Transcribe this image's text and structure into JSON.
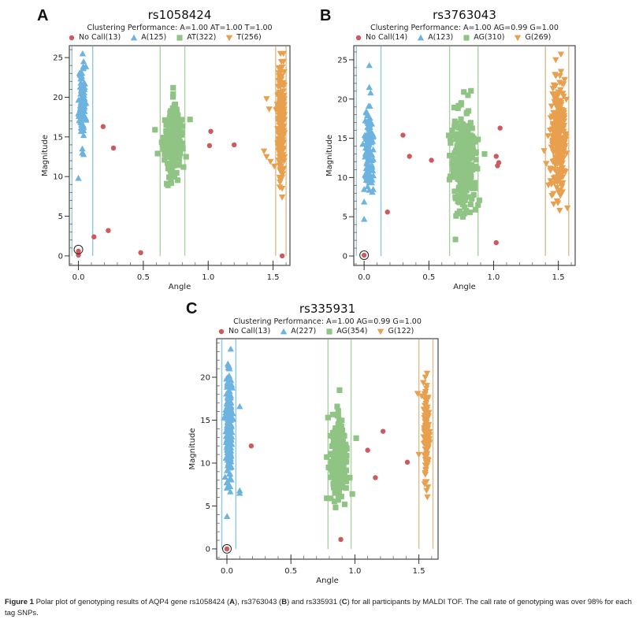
{
  "caption": {
    "lead": "Figure 1",
    "text_1": " Polar plot of genotyping results of AQP4 gene rs1058424 (",
    "b_A": "A",
    "text_2": "), rs3763043 (",
    "b_B": "B",
    "text_3": ") and rs335931 (",
    "b_C": "C",
    "text_4": ") for all participants by MALDI TOF. The call rate of genotyping was over 98% for each tag SNPs."
  },
  "colors": {
    "nocall": "#cc5a5f",
    "hom1": "#6cb4df",
    "het": "#8fc484",
    "hom2": "#e8a04f",
    "nocall_line": "#9fc8d6",
    "hom1_line": "#8fc4de",
    "het_line": "#a9d3a0",
    "hom2_line": "#d8be8e"
  },
  "chart_data": [
    {
      "panel": "A",
      "type": "scatter",
      "title": "rs1058424",
      "subtitle": "Clustering Performance: A=1.00 AT=1.00 T=1.00",
      "xlabel": "Angle",
      "ylabel": "Magnitude",
      "xlim": [
        -0.07,
        1.63
      ],
      "ylim": [
        -1.2,
        26.5
      ],
      "xticks": [
        "0.0",
        "0.5",
        "1.0",
        "1.5"
      ],
      "xtick_values": [
        0,
        0.5,
        1.0,
        1.5
      ],
      "yticks": [
        "0",
        "5",
        "10",
        "15",
        "20",
        "25"
      ],
      "ytick_values": [
        0,
        5,
        10,
        15,
        20,
        25
      ],
      "legend": [
        {
          "key": "nocall",
          "label": "No Call(13)",
          "shape": "circle"
        },
        {
          "key": "hom1",
          "label": "A(125)",
          "shape": "triangle-up"
        },
        {
          "key": "het",
          "label": "AT(322)",
          "shape": "square"
        },
        {
          "key": "hom2",
          "label": "T(256)",
          "shape": "triangle-down"
        }
      ],
      "boundaries": [
        {
          "x": -0.05,
          "key": "nocall_line"
        },
        {
          "x": 0.11,
          "key": "hom1_line"
        },
        {
          "x": 0.63,
          "key": "het_line"
        },
        {
          "x": 0.82,
          "key": "het_line"
        },
        {
          "x": 1.52,
          "key": "hom2_line"
        },
        {
          "x": 1.6,
          "key": "hom2_line"
        }
      ],
      "clusters": [
        {
          "key": "hom1",
          "shape": "triangle-up",
          "n": 125,
          "x_center": 0.03,
          "x_spread": 0.012,
          "y_center": 19.5,
          "y_spread": 2.2,
          "seed": 11
        },
        {
          "key": "het",
          "shape": "square",
          "n": 322,
          "x_center": 0.73,
          "x_spread": 0.03,
          "y_center": 14.5,
          "y_spread": 1.8,
          "seed": 23
        },
        {
          "key": "hom2",
          "shape": "triangle-down",
          "n": 256,
          "x_center": 1.56,
          "x_spread": 0.012,
          "y_center": 17,
          "y_spread": 3.5,
          "seed": 37
        }
      ],
      "points": {
        "hom1": [
          [
            0.04,
            24.5
          ],
          [
            0.04,
            23.8
          ],
          [
            0.03,
            13.5
          ],
          [
            0.03,
            13.0
          ],
          [
            0.04,
            12.8
          ],
          [
            0.0,
            9.8
          ],
          [
            0.04,
            15.2
          ],
          [
            0.04,
            15.8
          ]
        ],
        "het": [
          [
            0.73,
            21.2
          ],
          [
            0.73,
            20.4
          ],
          [
            0.86,
            17.2
          ],
          [
            0.59,
            15.9
          ],
          [
            0.61,
            12.9
          ],
          [
            0.69,
            8.9
          ],
          [
            0.68,
            9.1
          ],
          [
            0.83,
            12.5
          ],
          [
            0.81,
            11.2
          ],
          [
            0.71,
            10.0
          ],
          [
            0.74,
            10.0
          ]
        ],
        "hom2": [
          [
            1.58,
            25.5
          ],
          [
            1.58,
            24.5
          ],
          [
            1.57,
            23.8
          ],
          [
            1.45,
            19.8
          ],
          [
            1.47,
            18.5
          ],
          [
            1.43,
            13.2
          ],
          [
            1.45,
            12.5
          ],
          [
            1.48,
            11.9
          ],
          [
            1.51,
            11.3
          ],
          [
            1.55,
            9.9
          ],
          [
            1.57,
            8.5
          ],
          [
            1.57,
            7.4
          ]
        ],
        "nocall": [
          [
            0.19,
            16.3
          ],
          [
            0.27,
            13.6
          ],
          [
            0.23,
            3.2
          ],
          [
            0.12,
            2.4
          ],
          [
            0.48,
            0.4
          ],
          [
            0.0,
            0.6
          ],
          [
            0.0,
            0.1
          ],
          [
            1.02,
            15.7
          ],
          [
            1.01,
            13.9
          ],
          [
            1.2,
            14.0
          ],
          [
            1.57,
            0.0
          ]
        ]
      },
      "origin_marker": [
        0.0,
        0.8
      ]
    },
    {
      "panel": "B",
      "type": "scatter",
      "title": "rs3763043",
      "subtitle": "Clustering Performance: A=1.00 AG=0.99 G=1.00",
      "xlabel": "Angle",
      "ylabel": "Magnitude",
      "xlim": [
        -0.08,
        1.63
      ],
      "ylim": [
        -1.2,
        26.8
      ],
      "xticks": [
        "0.0",
        "0.5",
        "1.0",
        "1.5"
      ],
      "xtick_values": [
        0,
        0.5,
        1.0,
        1.5
      ],
      "yticks": [
        "0",
        "5",
        "10",
        "15",
        "20",
        "25"
      ],
      "ytick_values": [
        0,
        5,
        10,
        15,
        20,
        25
      ],
      "legend": [
        {
          "key": "nocall",
          "label": "No Call(14)",
          "shape": "circle"
        },
        {
          "key": "hom1",
          "label": "A(123)",
          "shape": "triangle-up"
        },
        {
          "key": "het",
          "label": "AG(310)",
          "shape": "square"
        },
        {
          "key": "hom2",
          "label": "G(269)",
          "shape": "triangle-down"
        }
      ],
      "boundaries": [
        {
          "x": -0.06,
          "key": "nocall_line"
        },
        {
          "x": 0.13,
          "key": "hom1_line"
        },
        {
          "x": 0.66,
          "key": "het_line"
        },
        {
          "x": 0.88,
          "key": "het_line"
        },
        {
          "x": 1.4,
          "key": "hom2_line"
        },
        {
          "x": 1.58,
          "key": "hom2_line"
        }
      ],
      "clusters": [
        {
          "key": "hom1",
          "shape": "triangle-up",
          "n": 123,
          "x_center": 0.035,
          "x_spread": 0.018,
          "y_center": 13.5,
          "y_spread": 2.6,
          "seed": 51
        },
        {
          "key": "het",
          "shape": "square",
          "n": 310,
          "x_center": 0.77,
          "x_spread": 0.04,
          "y_center": 12.0,
          "y_spread": 3.0,
          "seed": 63
        },
        {
          "key": "hom2",
          "shape": "triangle-down",
          "n": 269,
          "x_center": 1.5,
          "x_spread": 0.03,
          "y_center": 15.5,
          "y_spread": 3.6,
          "seed": 79
        }
      ],
      "points": {
        "hom1": [
          [
            0.04,
            24.3
          ],
          [
            0.04,
            21.5
          ],
          [
            0.05,
            20.8
          ],
          [
            0.0,
            8.5
          ],
          [
            0.04,
            8.4
          ],
          [
            0.07,
            8.5
          ],
          [
            0.0,
            6.9
          ],
          [
            0.0,
            4.7
          ]
        ],
        "het": [
          [
            0.77,
            20.9
          ],
          [
            0.75,
            19.5
          ],
          [
            0.93,
            13.0
          ],
          [
            0.69,
            15.4
          ],
          [
            0.66,
            12.8
          ],
          [
            0.72,
            5.4
          ],
          [
            0.71,
            5.1
          ],
          [
            0.86,
            5.9
          ],
          [
            0.88,
            6.5
          ],
          [
            0.89,
            7.1
          ]
        ],
        "hom2": [
          [
            1.52,
            25.7
          ],
          [
            1.48,
            25.0
          ],
          [
            1.42,
            15.3
          ],
          [
            1.39,
            13.4
          ],
          [
            1.45,
            7.7
          ],
          [
            1.51,
            5.8
          ],
          [
            1.57,
            6.1
          ],
          [
            1.49,
            7.0
          ]
        ],
        "nocall": [
          [
            0.3,
            15.4
          ],
          [
            0.35,
            12.7
          ],
          [
            0.52,
            12.2
          ],
          [
            0.18,
            5.6
          ],
          [
            1.05,
            16.3
          ],
          [
            1.02,
            12.7
          ],
          [
            1.04,
            11.9
          ],
          [
            1.03,
            11.5
          ],
          [
            1.02,
            1.7
          ],
          [
            0.0,
            0.1
          ]
        ]
      },
      "origin_marker": [
        0.0,
        0.1
      ]
    },
    {
      "panel": "C",
      "type": "scatter",
      "title": "rs335931",
      "subtitle": "Clustering Performance: A=1.00 AG=0.99 G=1.00",
      "xlabel": "Angle",
      "ylabel": "Magnitude",
      "xlim": [
        -0.08,
        1.65
      ],
      "ylim": [
        -1.2,
        24.5
      ],
      "xticks": [
        "0.0",
        "0.5",
        "1.0",
        "1.5"
      ],
      "xtick_values": [
        0,
        0.5,
        1.0,
        1.5
      ],
      "yticks": [
        "0",
        "5",
        "10",
        "15",
        "20"
      ],
      "ytick_values": [
        0,
        5,
        10,
        15,
        20
      ],
      "legend": [
        {
          "key": "nocall",
          "label": "No Call(13)",
          "shape": "circle"
        },
        {
          "key": "hom1",
          "label": "A(227)",
          "shape": "triangle-up"
        },
        {
          "key": "het",
          "label": "AG(354)",
          "shape": "square"
        },
        {
          "key": "hom2",
          "label": "G(122)",
          "shape": "triangle-down"
        }
      ],
      "boundaries": [
        {
          "x": -0.04,
          "key": "hom1_line"
        },
        {
          "x": 0.07,
          "key": "hom1_line"
        },
        {
          "x": 0.79,
          "key": "het_line"
        },
        {
          "x": 0.97,
          "key": "het_line"
        },
        {
          "x": 1.5,
          "key": "hom2_line"
        },
        {
          "x": 1.61,
          "key": "hom2_line"
        }
      ],
      "clusters": [
        {
          "key": "hom1",
          "shape": "triangle-up",
          "n": 227,
          "x_center": 0.015,
          "x_spread": 0.012,
          "y_center": 13.5,
          "y_spread": 3.2,
          "seed": 91
        },
        {
          "key": "het",
          "shape": "square",
          "n": 354,
          "x_center": 0.87,
          "x_spread": 0.028,
          "y_center": 10.5,
          "y_spread": 1.9,
          "seed": 103
        },
        {
          "key": "hom2",
          "shape": "triangle-down",
          "n": 122,
          "x_center": 1.56,
          "x_spread": 0.012,
          "y_center": 13.5,
          "y_spread": 2.6,
          "seed": 117
        }
      ],
      "points": {
        "hom1": [
          [
            0.03,
            23.3
          ],
          [
            0.01,
            21.4
          ],
          [
            0.02,
            21.0
          ],
          [
            0.1,
            16.6
          ],
          [
            0.1,
            6.8
          ],
          [
            0.1,
            6.5
          ],
          [
            0.0,
            7.1
          ]
        ],
        "het": [
          [
            0.88,
            18.5
          ],
          [
            0.87,
            16.1
          ],
          [
            1.01,
            12.9
          ],
          [
            0.79,
            15.3
          ],
          [
            0.78,
            10.7
          ],
          [
            0.78,
            5.9
          ],
          [
            0.87,
            5.7
          ],
          [
            0.92,
            5.2
          ],
          [
            0.98,
            6.4
          ],
          [
            0.96,
            8.3
          ]
        ],
        "hom2": [
          [
            1.55,
            20.0
          ],
          [
            1.49,
            18.1
          ],
          [
            1.56,
            6.8
          ],
          [
            1.5,
            11.0
          ],
          [
            1.55,
            7.8
          ]
        ],
        "nocall": [
          [
            0.19,
            12.0
          ],
          [
            1.22,
            13.7
          ],
          [
            1.1,
            11.5
          ],
          [
            1.41,
            10.1
          ],
          [
            1.16,
            8.3
          ],
          [
            0.89,
            1.1
          ],
          [
            0.0,
            0.0
          ]
        ]
      },
      "origin_marker": [
        0.0,
        0.0
      ]
    }
  ]
}
